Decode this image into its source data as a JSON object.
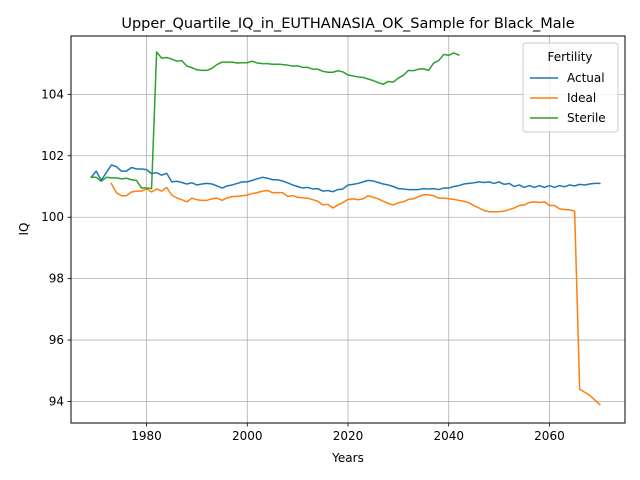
{
  "chart_data": {
    "type": "line",
    "title": "Upper_Quartile_IQ_in_EUTHANASIA_OK_Sample for Black_Male",
    "xlabel": "Years",
    "ylabel": "IQ",
    "xlim": [
      1965,
      2075
    ],
    "ylim": [
      93.3,
      105.9
    ],
    "xticks": [
      1980,
      2000,
      2020,
      2040,
      2060
    ],
    "yticks": [
      94,
      96,
      98,
      100,
      102,
      104
    ],
    "grid": true,
    "legend": {
      "title": "Fertility",
      "placement": "top-right"
    },
    "series": [
      {
        "name": "Actual",
        "color": "#1f77b4",
        "x": [
          1969,
          1970,
          1971,
          1972,
          1973,
          1974,
          1975,
          1976,
          1977,
          1978,
          1979,
          1980,
          1981,
          1982,
          1983,
          1984,
          1985,
          1986,
          1987,
          1988,
          1989,
          1990,
          1991,
          1992,
          1993,
          1994,
          1995,
          1996,
          1997,
          1998,
          1999,
          2000,
          2001,
          2002,
          2003,
          2004,
          2005,
          2006,
          2007,
          2008,
          2009,
          2010,
          2011,
          2012,
          2013,
          2014,
          2015,
          2016,
          2017,
          2018,
          2019,
          2020,
          2021,
          2022,
          2023,
          2024,
          2025,
          2026,
          2027,
          2028,
          2029,
          2030,
          2031,
          2032,
          2033,
          2034,
          2035,
          2036,
          2037,
          2038,
          2039,
          2040,
          2041,
          2042,
          2043,
          2044,
          2045,
          2046,
          2047,
          2048,
          2049,
          2050,
          2051,
          2052,
          2053,
          2054,
          2055,
          2056,
          2057,
          2058,
          2059,
          2060,
          2061,
          2062,
          2063,
          2064,
          2065,
          2066,
          2067,
          2068,
          2069,
          2070
        ],
        "values": [
          101.3,
          101.5,
          101.2,
          101.45,
          101.7,
          101.65,
          101.5,
          101.5,
          101.62,
          101.57,
          101.57,
          101.55,
          101.42,
          101.45,
          101.37,
          101.43,
          101.15,
          101.17,
          101.13,
          101.08,
          101.12,
          101.05,
          101.08,
          101.1,
          101.08,
          101.02,
          100.95,
          101.02,
          101.05,
          101.1,
          101.15,
          101.15,
          101.2,
          101.25,
          101.3,
          101.27,
          101.22,
          101.22,
          101.18,
          101.12,
          101.05,
          101.0,
          100.95,
          100.97,
          100.92,
          100.93,
          100.85,
          100.87,
          100.83,
          100.9,
          100.92,
          101.05,
          101.07,
          101.1,
          101.15,
          101.2,
          101.18,
          101.13,
          101.08,
          101.05,
          101.0,
          100.93,
          100.92,
          100.9,
          100.9,
          100.9,
          100.93,
          100.92,
          100.93,
          100.9,
          100.95,
          100.95,
          101.0,
          101.03,
          101.08,
          101.1,
          101.12,
          101.15,
          101.13,
          101.15,
          101.1,
          101.15,
          101.07,
          101.1,
          101.0,
          101.05,
          100.97,
          101.03,
          100.97,
          101.03,
          100.97,
          101.03,
          100.97,
          101.03,
          100.99,
          101.05,
          101.02,
          101.07,
          101.05,
          101.08,
          101.1,
          101.1
        ]
      },
      {
        "name": "Ideal",
        "color": "#ff7f0e",
        "x": [
          1973,
          1974,
          1975,
          1976,
          1977,
          1978,
          1979,
          1980,
          1981,
          1982,
          1983,
          1984,
          1985,
          1986,
          1987,
          1988,
          1989,
          1990,
          1991,
          1992,
          1993,
          1994,
          1995,
          1996,
          1997,
          1998,
          1999,
          2000,
          2001,
          2002,
          2003,
          2004,
          2005,
          2006,
          2007,
          2008,
          2009,
          2010,
          2011,
          2012,
          2013,
          2014,
          2015,
          2016,
          2017,
          2018,
          2019,
          2020,
          2021,
          2022,
          2023,
          2024,
          2025,
          2026,
          2027,
          2028,
          2029,
          2030,
          2031,
          2032,
          2033,
          2034,
          2035,
          2036,
          2037,
          2038,
          2039,
          2040,
          2041,
          2042,
          2043,
          2044,
          2045,
          2046,
          2047,
          2048,
          2049,
          2050,
          2051,
          2052,
          2053,
          2054,
          2055,
          2056,
          2057,
          2058,
          2059,
          2060,
          2061,
          2062,
          2063,
          2064,
          2065,
          2066,
          2067,
          2068,
          2069,
          2070
        ],
        "values": [
          101.1,
          100.8,
          100.7,
          100.7,
          100.82,
          100.85,
          100.85,
          100.92,
          100.82,
          100.92,
          100.85,
          100.97,
          100.72,
          100.63,
          100.57,
          100.5,
          100.62,
          100.57,
          100.55,
          100.55,
          100.6,
          100.62,
          100.55,
          100.63,
          100.67,
          100.68,
          100.7,
          100.72,
          100.77,
          100.8,
          100.85,
          100.87,
          100.8,
          100.8,
          100.8,
          100.68,
          100.7,
          100.65,
          100.63,
          100.62,
          100.57,
          100.52,
          100.4,
          100.42,
          100.3,
          100.4,
          100.48,
          100.58,
          100.6,
          100.57,
          100.6,
          100.7,
          100.65,
          100.6,
          100.52,
          100.45,
          100.4,
          100.47,
          100.5,
          100.58,
          100.6,
          100.67,
          100.73,
          100.73,
          100.7,
          100.62,
          100.62,
          100.6,
          100.58,
          100.55,
          100.52,
          100.47,
          100.38,
          100.3,
          100.22,
          100.18,
          100.18,
          100.18,
          100.2,
          100.25,
          100.3,
          100.38,
          100.4,
          100.48,
          100.5,
          100.48,
          100.5,
          100.38,
          100.38,
          100.27,
          100.25,
          100.24,
          100.2,
          94.4,
          94.3,
          94.2,
          94.05,
          93.9
        ]
      },
      {
        "name": "Sterile",
        "color": "#2ca02c",
        "x": [
          1969,
          1970,
          1971,
          1972,
          1973,
          1974,
          1975,
          1976,
          1977,
          1978,
          1979,
          1980,
          1981,
          1982,
          1983,
          1984,
          1985,
          1986,
          1987,
          1988,
          1989,
          1990,
          1991,
          1992,
          1993,
          1994,
          1995,
          1996,
          1997,
          1998,
          1999,
          2000,
          2001,
          2002,
          2003,
          2004,
          2005,
          2006,
          2007,
          2008,
          2009,
          2010,
          2011,
          2012,
          2013,
          2014,
          2015,
          2016,
          2017,
          2018,
          2019,
          2020,
          2021,
          2022,
          2023,
          2024,
          2025,
          2026,
          2027,
          2028,
          2029,
          2030,
          2031,
          2032,
          2033,
          2034,
          2035,
          2036,
          2037,
          2038,
          2039,
          2040,
          2041,
          2042
        ],
        "values": [
          101.3,
          101.3,
          101.17,
          101.3,
          101.28,
          101.28,
          101.25,
          101.27,
          101.22,
          101.2,
          100.95,
          100.95,
          100.93,
          105.38,
          105.18,
          105.2,
          105.15,
          105.08,
          105.1,
          104.92,
          104.87,
          104.8,
          104.78,
          104.78,
          104.85,
          104.97,
          105.05,
          105.05,
          105.05,
          105.02,
          105.03,
          105.03,
          105.08,
          105.02,
          105.0,
          105.0,
          104.98,
          104.98,
          104.97,
          104.95,
          104.92,
          104.93,
          104.88,
          104.88,
          104.82,
          104.82,
          104.75,
          104.72,
          104.72,
          104.77,
          104.73,
          104.63,
          104.6,
          104.57,
          104.55,
          104.5,
          104.45,
          104.38,
          104.33,
          104.42,
          104.4,
          104.53,
          104.62,
          104.78,
          104.77,
          104.82,
          104.83,
          104.78,
          105.02,
          105.1,
          105.3,
          105.27,
          105.35,
          105.28
        ]
      }
    ]
  }
}
